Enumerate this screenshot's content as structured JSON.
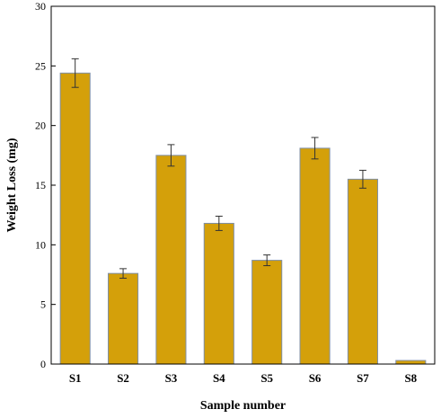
{
  "chart_data": {
    "type": "bar",
    "categories": [
      "S1",
      "S2",
      "S3",
      "S4",
      "S5",
      "S6",
      "S7",
      "S8"
    ],
    "values": [
      24.4,
      7.6,
      17.5,
      11.8,
      8.7,
      18.1,
      15.5,
      0.3
    ],
    "errors": [
      1.2,
      0.4,
      0.9,
      0.6,
      0.45,
      0.9,
      0.75,
      0
    ],
    "title": "",
    "xlabel": "Sample number",
    "ylabel": "Weight Loss (mg)",
    "ylim": [
      0,
      30
    ],
    "yticks": [
      0,
      5,
      10,
      15,
      20,
      25,
      30
    ],
    "grid": false,
    "bar_color": "#D4A00A",
    "bar_edge_color": "#7F8FA6"
  }
}
